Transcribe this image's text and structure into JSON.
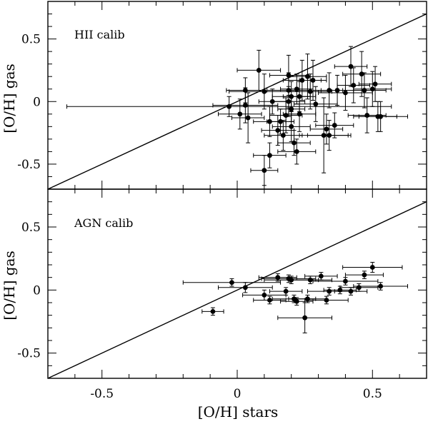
{
  "chart_data": [
    {
      "type": "scatter",
      "panel_label": "HII calib",
      "xlabel": "[O/H] stars",
      "ylabel": "[O/H] gas",
      "xlim": [
        -0.7,
        0.7
      ],
      "ylim": [
        -0.7,
        0.8
      ],
      "x_ticks": [
        "-0.5",
        "0",
        "0.5"
      ],
      "y_ticks": [
        "-0.5",
        "0",
        "0.5"
      ],
      "reference_line": "one-to-one",
      "grid": false,
      "legend": "none",
      "points": [
        {
          "x": -0.03,
          "y": -0.04,
          "xerr": 0.6,
          "yerr": 0.08
        },
        {
          "x": 0.01,
          "y": -0.1,
          "xerr": 0.08,
          "yerr": 0.12
        },
        {
          "x": 0.03,
          "y": 0.09,
          "xerr": 0.07,
          "yerr": 0.1
        },
        {
          "x": 0.03,
          "y": -0.03,
          "xerr": 0.12,
          "yerr": 0.14
        },
        {
          "x": 0.04,
          "y": -0.13,
          "xerr": 0.06,
          "yerr": 0.2
        },
        {
          "x": 0.08,
          "y": 0.25,
          "xerr": 0.08,
          "yerr": 0.16
        },
        {
          "x": 0.1,
          "y": 0.08,
          "xerr": 0.13,
          "yerr": 0.14
        },
        {
          "x": 0.1,
          "y": -0.55,
          "xerr": 0.05,
          "yerr": 0.12
        },
        {
          "x": 0.12,
          "y": -0.43,
          "xerr": 0.06,
          "yerr": 0.1
        },
        {
          "x": 0.12,
          "y": -0.16,
          "xerr": 0.06,
          "yerr": 0.12
        },
        {
          "x": 0.13,
          "y": 0.0,
          "xerr": 0.05,
          "yerr": 0.1
        },
        {
          "x": 0.15,
          "y": -0.23,
          "xerr": 0.06,
          "yerr": 0.12
        },
        {
          "x": 0.16,
          "y": -0.16,
          "xerr": 0.05,
          "yerr": 0.1
        },
        {
          "x": 0.17,
          "y": -0.27,
          "xerr": 0.07,
          "yerr": 0.12
        },
        {
          "x": 0.18,
          "y": -0.11,
          "xerr": 0.06,
          "yerr": 0.14
        },
        {
          "x": 0.19,
          "y": 0.21,
          "xerr": 0.07,
          "yerr": 0.16
        },
        {
          "x": 0.19,
          "y": 0.09,
          "xerr": 0.08,
          "yerr": 0.14
        },
        {
          "x": 0.19,
          "y": 0.0,
          "xerr": 0.06,
          "yerr": 0.12
        },
        {
          "x": 0.2,
          "y": 0.04,
          "xerr": 0.07,
          "yerr": 0.12
        },
        {
          "x": 0.2,
          "y": -0.06,
          "xerr": 0.05,
          "yerr": 0.1
        },
        {
          "x": 0.2,
          "y": -0.2,
          "xerr": 0.07,
          "yerr": 0.12
        },
        {
          "x": 0.21,
          "y": -0.33,
          "xerr": 0.06,
          "yerr": 0.1
        },
        {
          "x": 0.22,
          "y": 0.1,
          "xerr": 0.06,
          "yerr": 0.12
        },
        {
          "x": 0.22,
          "y": -0.4,
          "xerr": 0.07,
          "yerr": 0.1
        },
        {
          "x": 0.23,
          "y": 0.04,
          "xerr": 0.06,
          "yerr": 0.12
        },
        {
          "x": 0.23,
          "y": -0.1,
          "xerr": 0.06,
          "yerr": 0.14
        },
        {
          "x": 0.24,
          "y": 0.17,
          "xerr": 0.07,
          "yerr": 0.16
        },
        {
          "x": 0.26,
          "y": 0.2,
          "xerr": 0.07,
          "yerr": 0.18
        },
        {
          "x": 0.27,
          "y": 0.08,
          "xerr": 0.08,
          "yerr": 0.14
        },
        {
          "x": 0.28,
          "y": 0.17,
          "xerr": 0.05,
          "yerr": 0.16
        },
        {
          "x": 0.29,
          "y": -0.02,
          "xerr": 0.08,
          "yerr": 0.14
        },
        {
          "x": 0.32,
          "y": -0.27,
          "xerr": 0.09,
          "yerr": 0.3
        },
        {
          "x": 0.33,
          "y": -0.22,
          "xerr": 0.06,
          "yerr": 0.12
        },
        {
          "x": 0.34,
          "y": 0.09,
          "xerr": 0.06,
          "yerr": 0.14
        },
        {
          "x": 0.34,
          "y": -0.27,
          "xerr": 0.08,
          "yerr": 0.12
        },
        {
          "x": 0.36,
          "y": -0.19,
          "xerr": 0.07,
          "yerr": 0.1
        },
        {
          "x": 0.37,
          "y": 0.09,
          "xerr": 0.06,
          "yerr": 0.12
        },
        {
          "x": 0.4,
          "y": 0.07,
          "xerr": 0.1,
          "yerr": 0.14
        },
        {
          "x": 0.42,
          "y": 0.28,
          "xerr": 0.06,
          "yerr": 0.16
        },
        {
          "x": 0.43,
          "y": 0.13,
          "xerr": 0.06,
          "yerr": 0.14
        },
        {
          "x": 0.46,
          "y": 0.22,
          "xerr": 0.07,
          "yerr": 0.18
        },
        {
          "x": 0.47,
          "y": 0.09,
          "xerr": 0.08,
          "yerr": 0.14
        },
        {
          "x": 0.48,
          "y": -0.11,
          "xerr": 0.07,
          "yerr": 0.14
        },
        {
          "x": 0.5,
          "y": 0.1,
          "xerr": 0.07,
          "yerr": 0.14
        },
        {
          "x": 0.51,
          "y": 0.14,
          "xerr": 0.06,
          "yerr": 0.14
        },
        {
          "x": 0.52,
          "y": -0.12,
          "xerr": 0.07,
          "yerr": 0.12
        },
        {
          "x": 0.53,
          "y": -0.12,
          "xerr": 0.1,
          "yerr": 0.12
        }
      ]
    },
    {
      "type": "scatter",
      "panel_label": "AGN calib",
      "xlabel": "[O/H] stars",
      "ylabel": "[O/H] gas",
      "xlim": [
        -0.7,
        0.7
      ],
      "ylim": [
        -0.7,
        0.8
      ],
      "x_ticks": [
        "-0.5",
        "0",
        "0.5"
      ],
      "y_ticks": [
        "-0.5",
        "0",
        "0.5"
      ],
      "reference_line": "one-to-one",
      "grid": false,
      "legend": "none",
      "points": [
        {
          "x": -0.09,
          "y": -0.17,
          "xerr": 0.04,
          "yerr": 0.03
        },
        {
          "x": -0.02,
          "y": 0.06,
          "xerr": 0.18,
          "yerr": 0.03
        },
        {
          "x": 0.03,
          "y": 0.02,
          "xerr": 0.1,
          "yerr": 0.04
        },
        {
          "x": 0.1,
          "y": -0.04,
          "xerr": 0.08,
          "yerr": 0.04
        },
        {
          "x": 0.12,
          "y": -0.08,
          "xerr": 0.06,
          "yerr": 0.03
        },
        {
          "x": 0.15,
          "y": 0.1,
          "xerr": 0.07,
          "yerr": 0.03
        },
        {
          "x": 0.18,
          "y": -0.01,
          "xerr": 0.06,
          "yerr": 0.03
        },
        {
          "x": 0.19,
          "y": 0.09,
          "xerr": 0.1,
          "yerr": 0.03
        },
        {
          "x": 0.2,
          "y": 0.08,
          "xerr": 0.1,
          "yerr": 0.03
        },
        {
          "x": 0.21,
          "y": -0.07,
          "xerr": 0.08,
          "yerr": 0.03
        },
        {
          "x": 0.22,
          "y": -0.09,
          "xerr": 0.06,
          "yerr": 0.03
        },
        {
          "x": 0.25,
          "y": -0.22,
          "xerr": 0.1,
          "yerr": 0.12
        },
        {
          "x": 0.26,
          "y": -0.07,
          "xerr": 0.07,
          "yerr": 0.03
        },
        {
          "x": 0.27,
          "y": 0.08,
          "xerr": 0.08,
          "yerr": 0.03
        },
        {
          "x": 0.31,
          "y": 0.11,
          "xerr": 0.06,
          "yerr": 0.03
        },
        {
          "x": 0.33,
          "y": -0.08,
          "xerr": 0.08,
          "yerr": 0.03
        },
        {
          "x": 0.34,
          "y": -0.01,
          "xerr": 0.08,
          "yerr": 0.03
        },
        {
          "x": 0.38,
          "y": 0.0,
          "xerr": 0.06,
          "yerr": 0.03
        },
        {
          "x": 0.4,
          "y": 0.07,
          "xerr": 0.12,
          "yerr": 0.03
        },
        {
          "x": 0.42,
          "y": -0.01,
          "xerr": 0.06,
          "yerr": 0.03
        },
        {
          "x": 0.45,
          "y": 0.02,
          "xerr": 0.07,
          "yerr": 0.03
        },
        {
          "x": 0.47,
          "y": 0.12,
          "xerr": 0.07,
          "yerr": 0.03
        },
        {
          "x": 0.5,
          "y": 0.18,
          "xerr": 0.11,
          "yerr": 0.04
        },
        {
          "x": 0.53,
          "y": 0.03,
          "xerr": 0.1,
          "yerr": 0.03
        }
      ]
    }
  ]
}
